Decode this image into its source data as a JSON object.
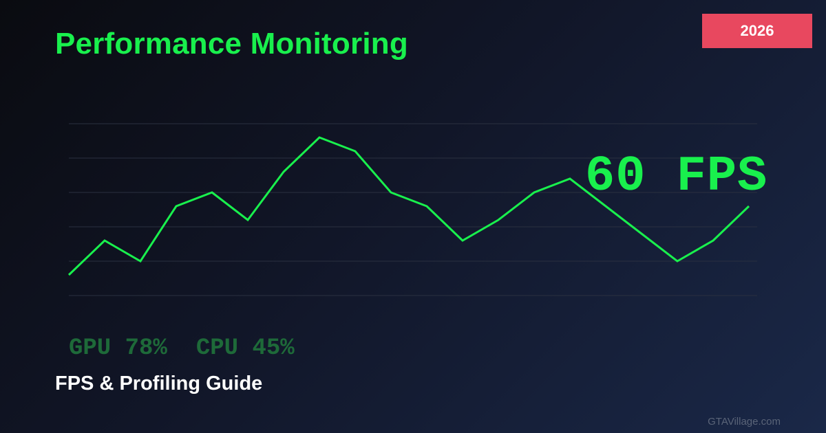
{
  "header": {
    "title": "Performance Monitoring",
    "year_badge": "2026"
  },
  "readout": {
    "fps": "60 FPS"
  },
  "stats": {
    "gpu": "GPU 78%",
    "cpu": "CPU 45%"
  },
  "footer": {
    "subtitle": "FPS & Profiling Guide",
    "watermark": "GTAVillage.com"
  },
  "colors": {
    "accent": "#19f04d",
    "badge": "#e8485f",
    "stats": "#1e6a39",
    "grid": "#2a3040"
  },
  "chart_data": {
    "type": "line",
    "grid": true,
    "ylim": [
      0,
      100
    ],
    "x": [
      0,
      1,
      2,
      3,
      4,
      5,
      6,
      7,
      8,
      9,
      10,
      11,
      12,
      13,
      14,
      15,
      16,
      17,
      18,
      19
    ],
    "series": [
      {
        "values": [
          12,
          32,
          20,
          52,
          60,
          44,
          72,
          92,
          84,
          60,
          52,
          32,
          44,
          60,
          68,
          52,
          36,
          20,
          32,
          52
        ]
      }
    ]
  }
}
